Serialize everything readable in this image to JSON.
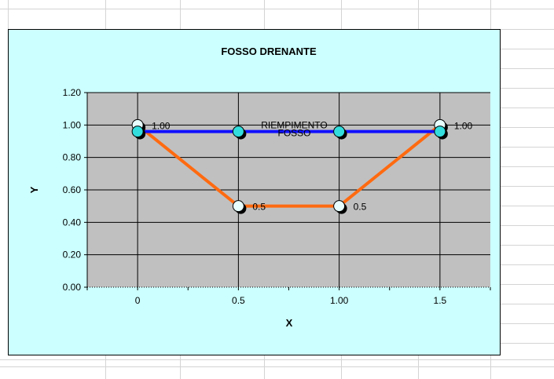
{
  "colors": {
    "chart_area": "#ccffff",
    "plot_area": "#c0c0c0",
    "trench_line": "#ff6a10",
    "fill_line": "#1010ff",
    "marker": "#33dddd"
  },
  "chart_data": {
    "type": "scatter",
    "title": "FOSSO DRENANTE",
    "xlabel": "X",
    "ylabel": "Y",
    "xlim": [
      -0.25,
      1.75
    ],
    "ylim": [
      0,
      1.2
    ],
    "x_ticks": [
      {
        "v": 0,
        "label": "0"
      },
      {
        "v": 0.5,
        "label": "0.5"
      },
      {
        "v": 1.0,
        "label": "1.00"
      },
      {
        "v": 1.5,
        "label": "1.5"
      }
    ],
    "y_ticks": [
      {
        "v": 0,
        "label": "0.00"
      },
      {
        "v": 0.2,
        "label": "0.20"
      },
      {
        "v": 0.4,
        "label": "0.40"
      },
      {
        "v": 0.6,
        "label": "0.60"
      },
      {
        "v": 0.8,
        "label": "0.80"
      },
      {
        "v": 1.0,
        "label": "1.00"
      },
      {
        "v": 1.2,
        "label": "1.20"
      }
    ],
    "grid": true,
    "series": [
      {
        "role": "trench",
        "points": [
          {
            "x": 0,
            "y": 1.0,
            "label": "1.00"
          },
          {
            "x": 0.5,
            "y": 0.5,
            "label": "0.5"
          },
          {
            "x": 1.0,
            "y": 0.5,
            "label": "0.5"
          },
          {
            "x": 1.5,
            "y": 1.0,
            "label": "1.00"
          }
        ]
      },
      {
        "role": "fill",
        "points": [
          {
            "x": 0,
            "y": 0.96
          },
          {
            "x": 0.5,
            "y": 0.96
          },
          {
            "x": 1.0,
            "y": 0.96
          },
          {
            "x": 1.5,
            "y": 0.96
          }
        ]
      }
    ],
    "annotations": [
      {
        "text": "RIEMPIMENTO",
        "x": 0.75,
        "y": 1.0
      },
      {
        "text": "FOSSO",
        "x": 0.75,
        "y": 0.95
      }
    ]
  }
}
